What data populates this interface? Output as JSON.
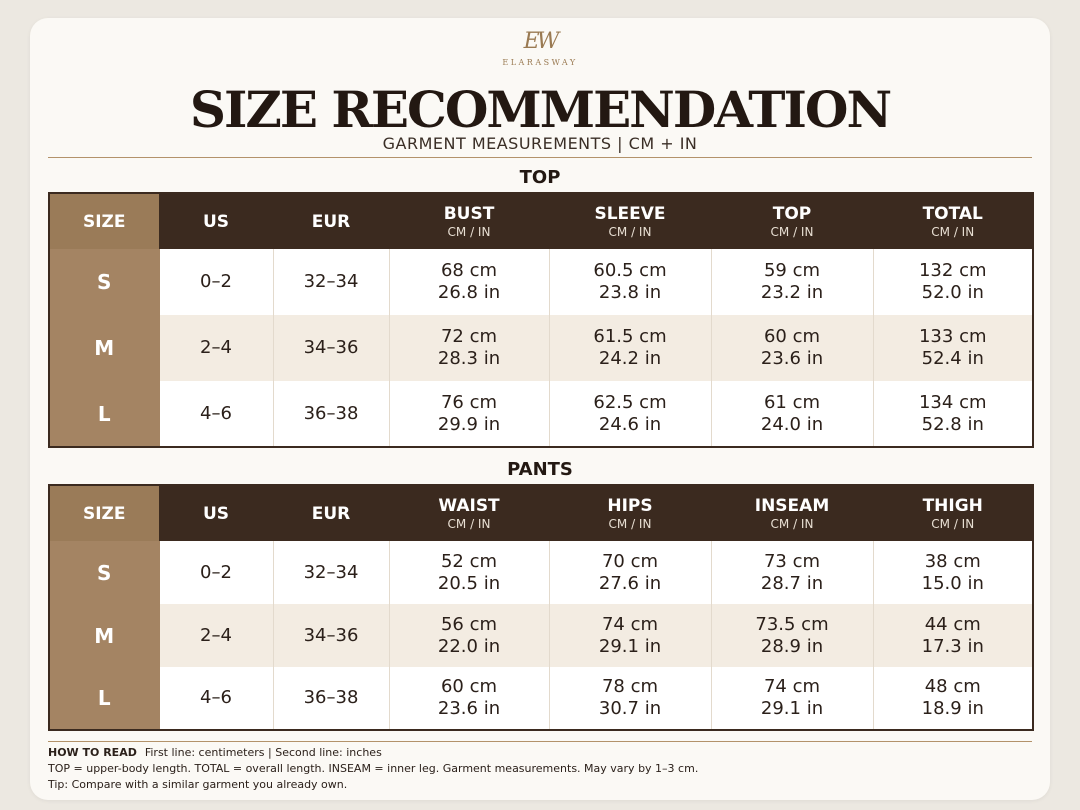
{
  "brand": {
    "logo_mark": "EW",
    "name": "ELARASWAY"
  },
  "title": "SIZE RECOMMENDATION",
  "subtitle": "GARMENT MEASUREMENTS | CM + IN",
  "top_table": {
    "section_title": "TOP",
    "columns": [
      {
        "label": "SIZE",
        "unit": ""
      },
      {
        "label": "US",
        "unit": ""
      },
      {
        "label": "EUR",
        "unit": ""
      },
      {
        "label": "BUST",
        "unit": "CM / IN"
      },
      {
        "label": "SLEEVE",
        "unit": "CM / IN"
      },
      {
        "label": "TOP",
        "unit": "CM / IN"
      },
      {
        "label": "TOTAL",
        "unit": "CM / IN"
      }
    ],
    "rows": [
      {
        "size": "S",
        "us": "0–2",
        "eur": "32–34",
        "cells": [
          [
            "68 cm",
            "26.8 in"
          ],
          [
            "60.5 cm",
            "23.8 in"
          ],
          [
            "59 cm",
            "23.2 in"
          ],
          [
            "132 cm",
            "52.0 in"
          ]
        ]
      },
      {
        "size": "M",
        "us": "2–4",
        "eur": "34–36",
        "cells": [
          [
            "72 cm",
            "28.3 in"
          ],
          [
            "61.5 cm",
            "24.2 in"
          ],
          [
            "60 cm",
            "23.6 in"
          ],
          [
            "133 cm",
            "52.4 in"
          ]
        ]
      },
      {
        "size": "L",
        "us": "4–6",
        "eur": "36–38",
        "cells": [
          [
            "76 cm",
            "29.9 in"
          ],
          [
            "62.5 cm",
            "24.6 in"
          ],
          [
            "61 cm",
            "24.0 in"
          ],
          [
            "134 cm",
            "52.8 in"
          ]
        ]
      }
    ]
  },
  "pants_table": {
    "section_title": "PANTS",
    "columns": [
      {
        "label": "SIZE",
        "unit": ""
      },
      {
        "label": "US",
        "unit": ""
      },
      {
        "label": "EUR",
        "unit": ""
      },
      {
        "label": "WAIST",
        "unit": "CM / IN"
      },
      {
        "label": "HIPS",
        "unit": "CM / IN"
      },
      {
        "label": "INSEAM",
        "unit": "CM / IN"
      },
      {
        "label": "THIGH",
        "unit": "CM / IN"
      }
    ],
    "rows": [
      {
        "size": "S",
        "us": "0–2",
        "eur": "32–34",
        "cells": [
          [
            "52 cm",
            "20.5 in"
          ],
          [
            "70 cm",
            "27.6 in"
          ],
          [
            "73 cm",
            "28.7 in"
          ],
          [
            "38 cm",
            "15.0 in"
          ]
        ]
      },
      {
        "size": "M",
        "us": "2–4",
        "eur": "34–36",
        "cells": [
          [
            "56 cm",
            "22.0 in"
          ],
          [
            "74 cm",
            "29.1 in"
          ],
          [
            "73.5 cm",
            "28.9 in"
          ],
          [
            "44 cm",
            "17.3 in"
          ]
        ]
      },
      {
        "size": "L",
        "us": "4–6",
        "eur": "36–38",
        "cells": [
          [
            "60 cm",
            "23.6 in"
          ],
          [
            "78 cm",
            "30.7 in"
          ],
          [
            "74 cm",
            "29.1 in"
          ],
          [
            "48 cm",
            "18.9 in"
          ]
        ]
      }
    ]
  },
  "notes": {
    "heading": "HOW TO READ",
    "line1": "First line: centimeters  |  Second line: inches",
    "line2": "TOP = upper-body length.  TOTAL = overall length.  INSEAM = inner leg. Garment measurements. May vary by 1–3 cm.",
    "line3": "Tip: Compare with a similar garment you already own."
  },
  "colors": {
    "header_dark": "#3b2a1f",
    "size_column": "#a48463",
    "accent_gold": "#b3926a",
    "stripe": "#f3ece2",
    "page_bg": "#fbf9f5"
  }
}
